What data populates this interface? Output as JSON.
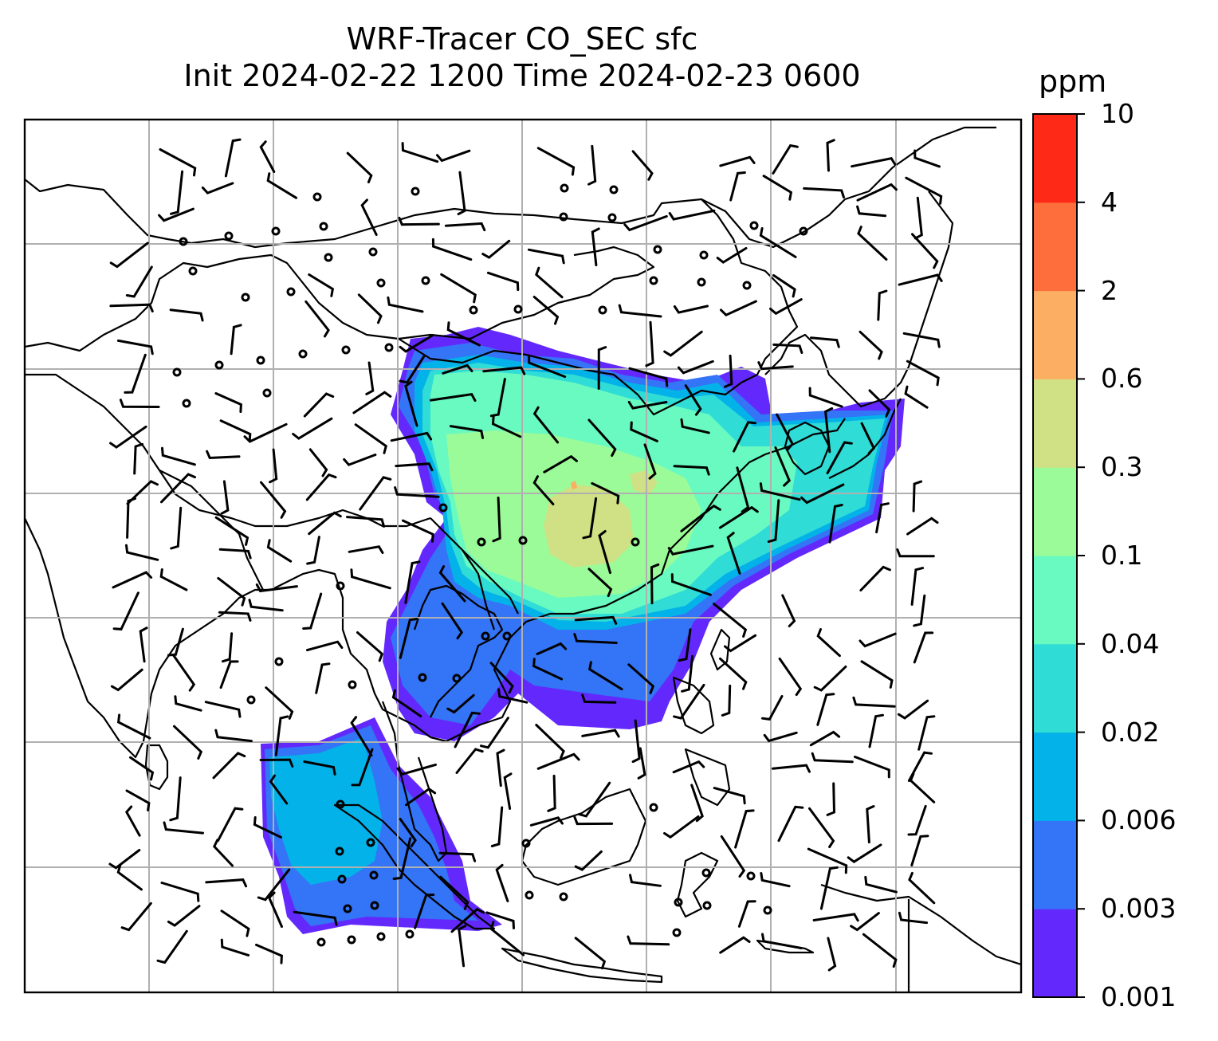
{
  "title": {
    "line1": "WRF-Tracer CO_SEC sfc",
    "line2": "Init 2024-02-22 1200 Time 2024-02-23 0600"
  },
  "colorbar": {
    "unit": "ppm",
    "ticks": [
      "0.001",
      "0.003",
      "0.006",
      "0.02",
      "0.04",
      "0.1",
      "0.3",
      "0.6",
      "2",
      "4",
      "10"
    ],
    "colors": [
      "#6329fc",
      "#3474f6",
      "#03b2e8",
      "#2fdcd6",
      "#68fac1",
      "#9bfb98",
      "#d0e084",
      "#fcae62",
      "#fd6e3c",
      "#fe2a17"
    ]
  },
  "map": {
    "gridlines": true,
    "frame_color": "#000000",
    "gridline_color": "#b0b0b0",
    "coastline_color": "#000000",
    "wind_barb_color": "#000000",
    "calm_marker": "circle"
  }
}
